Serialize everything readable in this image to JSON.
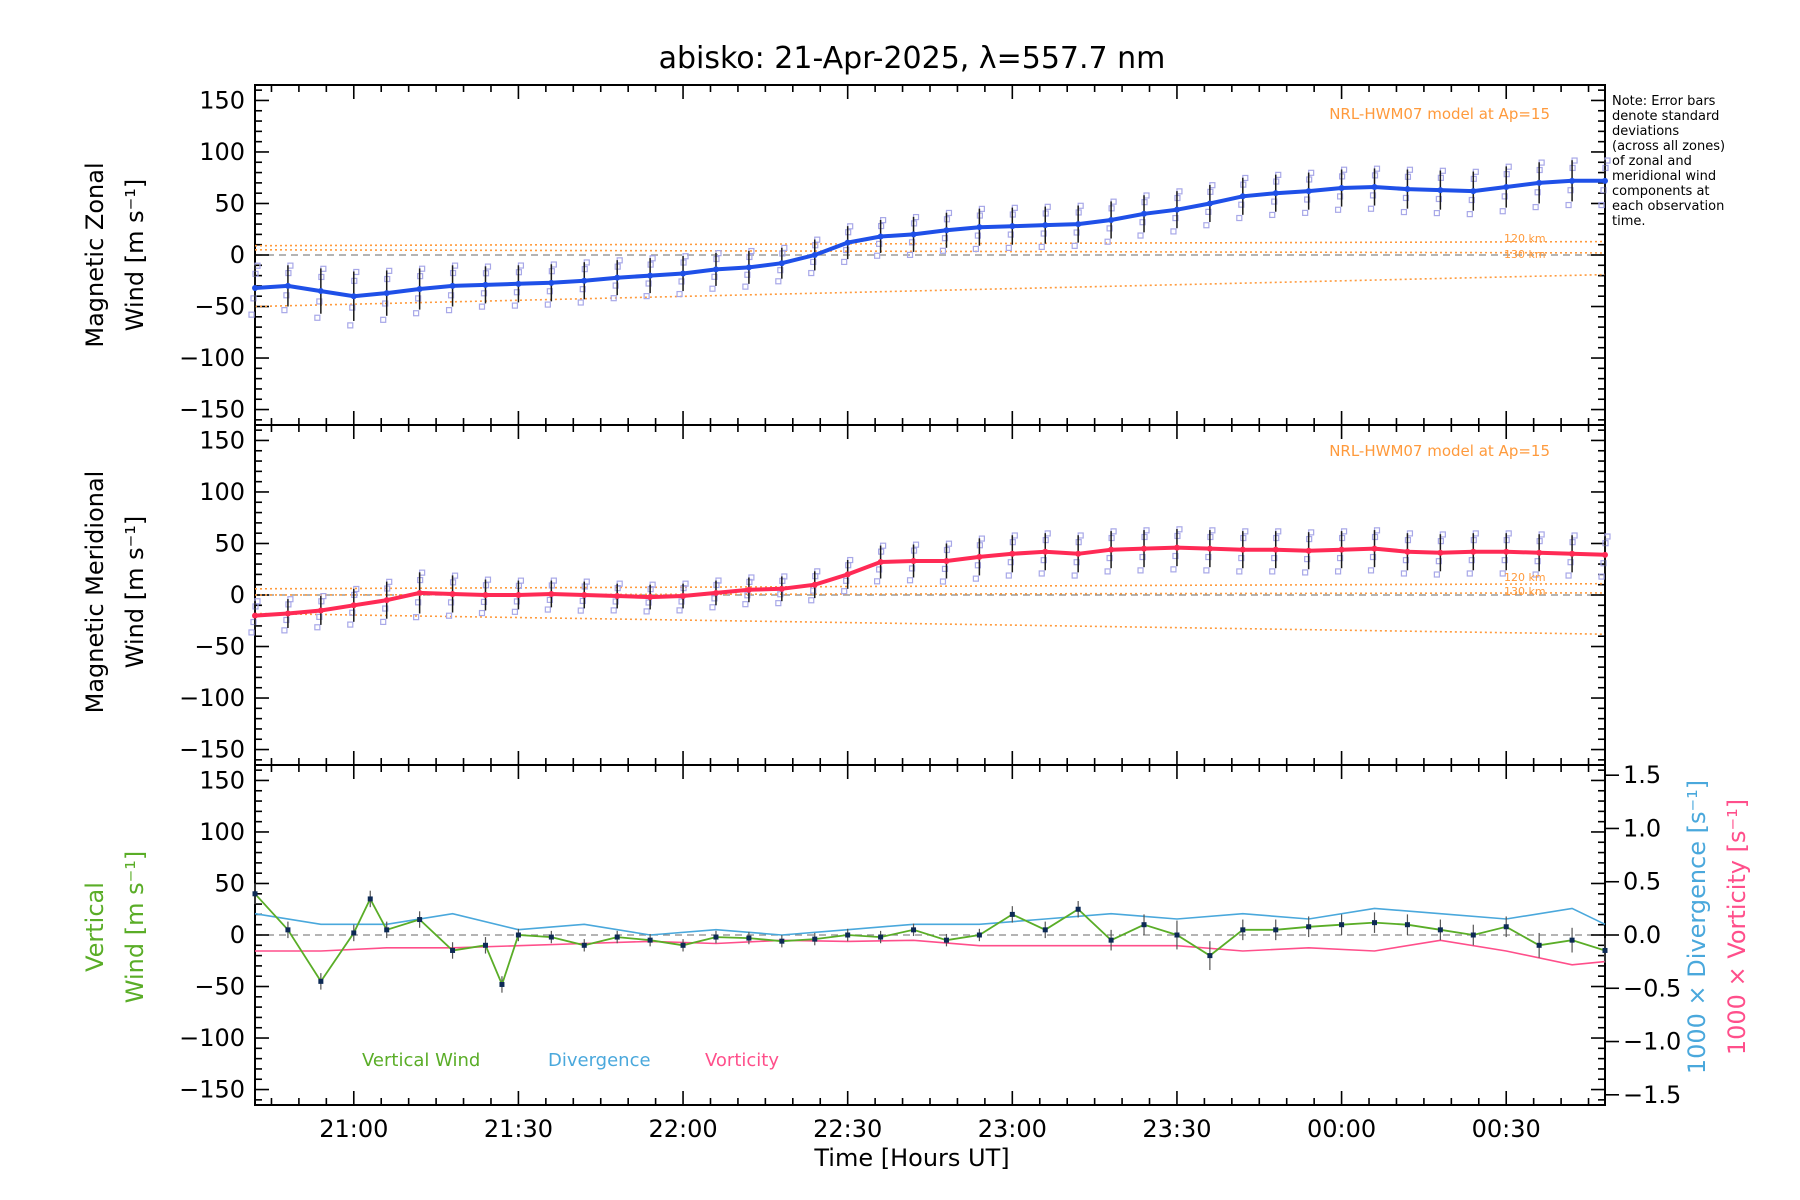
{
  "chart_data": {
    "type": "line",
    "title": "abisko: 21-Apr-2025, λ=557.7 nm",
    "xlabel": "Time [Hours UT]",
    "x_tick_labels": [
      "21:00",
      "21:30",
      "22:00",
      "22:30",
      "23:00",
      "23:30",
      "00:00",
      "00:30"
    ],
    "x_range_hours_ut": [
      20.7,
      24.8
    ],
    "x_tick_hours_ut": [
      21.0,
      21.5,
      22.0,
      22.5,
      23.0,
      23.5,
      24.0,
      24.5
    ],
    "y_tick_labels": [
      "150",
      "100",
      "50",
      "0",
      "−50",
      "−100",
      "−150"
    ],
    "y_tick_values": [
      150,
      100,
      50,
      0,
      -50,
      -100,
      -150
    ],
    "ylim": [
      -165,
      165
    ],
    "note_lines": [
      "Note: Error bars",
      "denote standard",
      "deviations",
      "(across all zones)",
      "of zonal and",
      "meridional wind",
      "components at",
      "each observation",
      "time."
    ],
    "colors": {
      "zonal": "#1f50e8",
      "meridional": "#ff2a55",
      "vertical": "#5aad27",
      "divergence": "#4aa8dc",
      "vorticity": "#ff4f8b",
      "model": "#ff9a3c",
      "zone_points": "#a8a8e8",
      "error_bar": "#1a1a1a"
    },
    "panels": [
      {
        "id": "zonal",
        "ylabel_line1": "Magnetic Zonal",
        "ylabel_line2": "Wind [m s⁻¹]",
        "model_label": "NRL-HWM07 model at Ap=15",
        "model_alt_labels": [
          "120 km",
          "130 km"
        ],
        "model_120km": {
          "x": [
            20.7,
            24.8
          ],
          "y": [
            9,
            13
          ]
        },
        "model_130km": {
          "x": [
            20.7,
            24.8
          ],
          "y": [
            5,
            2
          ]
        },
        "model_extra": {
          "x": [
            20.7,
            24.8
          ],
          "y": [
            -50,
            -19
          ]
        },
        "series": {
          "name": "",
          "x": [
            20.7,
            20.8,
            20.9,
            21.0,
            21.1,
            21.2,
            21.3,
            21.4,
            21.5,
            21.6,
            21.7,
            21.8,
            21.9,
            22.0,
            22.1,
            22.2,
            22.3,
            22.4,
            22.5,
            22.6,
            22.7,
            22.8,
            22.9,
            23.0,
            23.1,
            23.2,
            23.3,
            23.4,
            23.5,
            23.6,
            23.7,
            23.8,
            23.9,
            24.0,
            24.1,
            24.2,
            24.3,
            24.4,
            24.5,
            24.6,
            24.7,
            24.8
          ],
          "y": [
            -32,
            -30,
            -35,
            -40,
            -37,
            -33,
            -30,
            -29,
            -28,
            -27,
            -25,
            -22,
            -20,
            -18,
            -14,
            -12,
            -8,
            0,
            12,
            18,
            20,
            24,
            27,
            28,
            29,
            30,
            34,
            40,
            44,
            50,
            57,
            60,
            62,
            65,
            66,
            64,
            63,
            62,
            66,
            70,
            72,
            72
          ]
        },
        "error": [
          22,
          20,
          22,
          24,
          22,
          20,
          20,
          18,
          18,
          18,
          18,
          17,
          17,
          17,
          16,
          16,
          15,
          15,
          16,
          16,
          17,
          17,
          18,
          18,
          18,
          18,
          18,
          18,
          18,
          18,
          18,
          18,
          18,
          18,
          18,
          19,
          19,
          19,
          20,
          20,
          20,
          20
        ]
      },
      {
        "id": "meridional",
        "ylabel_line1": "Magnetic Meridional",
        "ylabel_line2": "Wind [m s⁻¹]",
        "model_label": "NRL-HWM07 model at Ap=15",
        "model_alt_labels": [
          "120 km",
          "130 km"
        ],
        "model_120km": {
          "x": [
            20.7,
            24.8
          ],
          "y": [
            6,
            11
          ]
        },
        "model_130km": {
          "x": [
            20.7,
            24.8
          ],
          "y": [
            0,
            2
          ]
        },
        "model_extra": {
          "x": [
            20.7,
            24.8
          ],
          "y": [
            -18,
            -38
          ]
        },
        "series": {
          "name": "",
          "x": [
            20.7,
            20.8,
            20.9,
            21.0,
            21.1,
            21.2,
            21.3,
            21.4,
            21.5,
            21.6,
            21.7,
            21.8,
            21.9,
            22.0,
            22.1,
            22.2,
            22.3,
            22.4,
            22.5,
            22.6,
            22.7,
            22.8,
            22.9,
            23.0,
            23.1,
            23.2,
            23.3,
            23.4,
            23.5,
            23.6,
            23.7,
            23.8,
            23.9,
            24.0,
            24.1,
            24.2,
            24.3,
            24.4,
            24.5,
            24.6,
            24.7,
            24.8
          ],
          "y": [
            -20,
            -18,
            -15,
            -10,
            -5,
            2,
            1,
            0,
            0,
            1,
            0,
            -1,
            -2,
            -1,
            2,
            5,
            6,
            10,
            20,
            32,
            33,
            33,
            37,
            40,
            42,
            40,
            44,
            45,
            46,
            45,
            44,
            44,
            43,
            44,
            45,
            42,
            41,
            42,
            42,
            41,
            40,
            39
          ]
        },
        "error": [
          14,
          14,
          14,
          16,
          18,
          20,
          18,
          15,
          14,
          13,
          13,
          12,
          12,
          12,
          12,
          12,
          12,
          13,
          14,
          16,
          16,
          17,
          18,
          18,
          18,
          18,
          18,
          18,
          18,
          18,
          18,
          18,
          18,
          18,
          18,
          18,
          18,
          18,
          18,
          18,
          18,
          18
        ]
      },
      {
        "id": "vertical",
        "ylabel_line1": "Vertical",
        "ylabel_line2": "Wind [m s⁻¹]",
        "right_axis_label_1": "1000 × Divergence [s⁻¹]",
        "right_axis_label_2": "1000 × Vorticity [s⁻¹]",
        "right_tick_labels": [
          "1.5",
          "1.0",
          "0.5",
          "0.0",
          "−0.5",
          "−1.0",
          "−1.5"
        ],
        "right_tick_values": [
          1.5,
          1.0,
          0.5,
          0.0,
          -0.5,
          -1.0,
          -1.5
        ],
        "right_ylim": [
          -1.5,
          1.5
        ],
        "legend": [
          "Vertical Wind",
          "Divergence",
          "Vorticity"
        ],
        "vertical_wind": {
          "x": [
            20.7,
            20.8,
            20.9,
            21.0,
            21.05,
            21.1,
            21.2,
            21.3,
            21.4,
            21.45,
            21.5,
            21.6,
            21.7,
            21.8,
            21.9,
            22.0,
            22.1,
            22.2,
            22.3,
            22.4,
            22.5,
            22.6,
            22.7,
            22.8,
            22.9,
            23.0,
            23.1,
            23.2,
            23.3,
            23.4,
            23.5,
            23.6,
            23.7,
            23.8,
            23.9,
            24.0,
            24.1,
            24.2,
            24.3,
            24.4,
            24.5,
            24.6,
            24.7,
            24.8
          ],
          "y": [
            40,
            5,
            -45,
            2,
            35,
            5,
            15,
            -15,
            -10,
            -48,
            0,
            -2,
            -10,
            -2,
            -5,
            -10,
            -2,
            -3,
            -6,
            -4,
            0,
            -2,
            5,
            -5,
            0,
            20,
            5,
            25,
            -5,
            10,
            0,
            -20,
            5,
            5,
            8,
            10,
            12,
            10,
            5,
            0,
            8,
            -10,
            -5,
            -15
          ]
        },
        "vertical_error": [
          10,
          8,
          8,
          8,
          8,
          8,
          8,
          8,
          8,
          8,
          6,
          6,
          6,
          6,
          6,
          6,
          6,
          6,
          6,
          6,
          6,
          6,
          6,
          6,
          6,
          8,
          8,
          8,
          10,
          10,
          14,
          14,
          10,
          10,
          10,
          10,
          10,
          10,
          10,
          10,
          10,
          12,
          12,
          12
        ],
        "divergence": {
          "x": [
            20.7,
            20.9,
            21.1,
            21.3,
            21.5,
            21.7,
            21.9,
            22.1,
            22.3,
            22.5,
            22.7,
            22.9,
            23.1,
            23.3,
            23.5,
            23.7,
            23.9,
            24.1,
            24.3,
            24.5,
            24.7,
            24.8
          ],
          "y": [
            0.2,
            0.1,
            0.1,
            0.2,
            0.05,
            0.1,
            0.0,
            0.05,
            0.0,
            0.05,
            0.1,
            0.1,
            0.15,
            0.2,
            0.15,
            0.2,
            0.15,
            0.25,
            0.2,
            0.15,
            0.25,
            0.1
          ]
        },
        "vorticity": {
          "x": [
            20.7,
            20.9,
            21.1,
            21.3,
            21.5,
            21.7,
            21.9,
            22.1,
            22.3,
            22.5,
            22.7,
            22.9,
            23.1,
            23.3,
            23.5,
            23.7,
            23.9,
            24.1,
            24.3,
            24.5,
            24.7,
            24.8
          ],
          "y": [
            -0.15,
            -0.15,
            -0.12,
            -0.12,
            -0.1,
            -0.08,
            -0.06,
            -0.08,
            -0.05,
            -0.06,
            -0.05,
            -0.1,
            -0.1,
            -0.1,
            -0.1,
            -0.15,
            -0.12,
            -0.15,
            -0.05,
            -0.15,
            -0.28,
            -0.25
          ]
        }
      }
    ]
  }
}
